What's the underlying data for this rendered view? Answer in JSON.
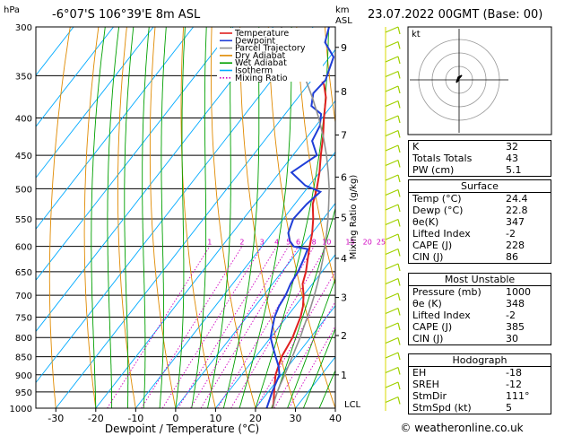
{
  "header": {
    "hpa": "hPa",
    "location": "-6°07'S 106°39'E 8m ASL",
    "km": "km",
    "asl": "ASL",
    "datetime": "23.07.2022 00GMT (Base: 00)"
  },
  "legend": [
    {
      "name": "Temperature",
      "color": "#e02020"
    },
    {
      "name": "Dewpoint",
      "color": "#1f3ed8"
    },
    {
      "name": "Parcel Trajectory",
      "color": "#909090"
    },
    {
      "name": "Dry Adiabat",
      "color": "#e08a00"
    },
    {
      "name": "Wet Adiabat",
      "color": "#00a000"
    },
    {
      "name": "Isotherm",
      "color": "#00aaff"
    },
    {
      "name": "Mixing Ratio",
      "color": "#d000c0"
    }
  ],
  "axes": {
    "xlabel": "Dewpoint / Temperature (°C)",
    "ylabel_right": "Mixing Ratio (g/kg)",
    "lcl": "LCL",
    "copyright": "© weatheronline.co.uk"
  },
  "chart_data": {
    "type": "line",
    "xlim": [
      -35,
      40
    ],
    "ylim_hpa": [
      1000,
      300
    ],
    "x_ticks": [
      "-30",
      "-20",
      "-10",
      "0",
      "10",
      "20",
      "30",
      "40"
    ],
    "pressure_ticks": [
      "1000",
      "950",
      "900",
      "850",
      "800",
      "750",
      "700",
      "650",
      "600",
      "550",
      "500",
      "450",
      "400",
      "350",
      "300"
    ],
    "km_ticks": [
      {
        "label": "1",
        "p": 900
      },
      {
        "label": "2",
        "p": 795
      },
      {
        "label": "3",
        "p": 705
      },
      {
        "label": "4",
        "p": 623
      },
      {
        "label": "5",
        "p": 548
      },
      {
        "label": "6",
        "p": 482
      },
      {
        "label": "7",
        "p": 422
      },
      {
        "label": "8",
        "p": 368
      },
      {
        "label": "9",
        "p": 320
      }
    ],
    "mixing_ratio_labels": [
      "1",
      "2",
      "3",
      "4",
      "5",
      "6",
      "8",
      "10",
      "15",
      "20",
      "25"
    ],
    "series": [
      {
        "name": "Temperature",
        "points": [
          [
            24.4,
            1000
          ],
          [
            23,
            975
          ],
          [
            21.5,
            950
          ],
          [
            20,
            925
          ],
          [
            18.5,
            900
          ],
          [
            17.5,
            875
          ],
          [
            16.5,
            850
          ],
          [
            16,
            825
          ],
          [
            15.5,
            800
          ],
          [
            14.5,
            775
          ],
          [
            13.5,
            750
          ],
          [
            12,
            725
          ],
          [
            10,
            700
          ],
          [
            7.5,
            675
          ],
          [
            6,
            650
          ],
          [
            4,
            625
          ],
          [
            2,
            600
          ],
          [
            0,
            575
          ],
          [
            -2.5,
            550
          ],
          [
            -5.5,
            525
          ],
          [
            -7.5,
            500
          ],
          [
            -10,
            475
          ],
          [
            -13,
            450
          ],
          [
            -16,
            425
          ],
          [
            -19.5,
            400
          ],
          [
            -23,
            375
          ],
          [
            -26,
            360
          ],
          [
            -27.5,
            355
          ]
        ]
      },
      {
        "name": "Dewpoint",
        "points": [
          [
            22.8,
            1000
          ],
          [
            21,
            950
          ],
          [
            19.5,
            900
          ],
          [
            17.5,
            875
          ],
          [
            15,
            850
          ],
          [
            12.5,
            825
          ],
          [
            10,
            800
          ],
          [
            8.5,
            775
          ],
          [
            7,
            750
          ],
          [
            6,
            725
          ],
          [
            5.5,
            700
          ],
          [
            4.5,
            675
          ],
          [
            4,
            650
          ],
          [
            3,
            625
          ],
          [
            2,
            605
          ],
          [
            -2,
            600
          ],
          [
            -4,
            590
          ],
          [
            -6,
            575
          ],
          [
            -7.5,
            550
          ],
          [
            -7,
            525
          ],
          [
            -6,
            505
          ],
          [
            -11,
            495
          ],
          [
            -17,
            475
          ],
          [
            -14,
            450
          ],
          [
            -18,
            430
          ],
          [
            -19,
            410
          ],
          [
            -21,
            395
          ],
          [
            -25,
            385
          ],
          [
            -27,
            370
          ],
          [
            -26.5,
            355
          ],
          [
            -29,
            330
          ],
          [
            -34,
            315
          ],
          [
            -36,
            300
          ]
        ]
      },
      {
        "name": "Parcel Trajectory",
        "points": [
          [
            24.4,
            1000
          ],
          [
            23.2,
            975
          ],
          [
            22.3,
            950
          ],
          [
            21.5,
            925
          ],
          [
            20.8,
            900
          ],
          [
            20,
            875
          ],
          [
            19.2,
            850
          ],
          [
            18.3,
            825
          ],
          [
            17.4,
            800
          ],
          [
            16.3,
            775
          ],
          [
            15.2,
            750
          ],
          [
            14,
            725
          ],
          [
            12.7,
            700
          ],
          [
            11.2,
            675
          ],
          [
            9.6,
            650
          ],
          [
            7.8,
            625
          ],
          [
            5.8,
            600
          ],
          [
            3.6,
            575
          ],
          [
            1.2,
            550
          ],
          [
            -1.5,
            525
          ],
          [
            -4.4,
            500
          ],
          [
            -7.8,
            475
          ],
          [
            -11.6,
            450
          ],
          [
            -15.9,
            425
          ],
          [
            -20.8,
            400
          ],
          [
            -26.4,
            375
          ],
          [
            -32.7,
            350
          ],
          [
            -40,
            325
          ],
          [
            -48,
            300
          ]
        ]
      }
    ]
  },
  "hodograph": {
    "label": "kt"
  },
  "indices": [
    {
      "label": "K",
      "value": "32"
    },
    {
      "label": "Totals Totals",
      "value": "43"
    },
    {
      "label": "PW (cm)",
      "value": "5.1"
    }
  ],
  "surface": {
    "title": "Surface",
    "rows": [
      {
        "label": "Temp (°C)",
        "value": "24.4"
      },
      {
        "label": "Dewp (°C)",
        "value": "22.8"
      },
      {
        "label": "θe(K)",
        "value": "347"
      },
      {
        "label": "Lifted Index",
        "value": "-2"
      },
      {
        "label": "CAPE (J)",
        "value": "228"
      },
      {
        "label": "CIN (J)",
        "value": "86"
      }
    ]
  },
  "most_unstable": {
    "title": "Most Unstable",
    "rows": [
      {
        "label": "Pressure (mb)",
        "value": "1000"
      },
      {
        "label": "θe (K)",
        "value": "348"
      },
      {
        "label": "Lifted Index",
        "value": "-2"
      },
      {
        "label": "CAPE (J)",
        "value": "385"
      },
      {
        "label": "CIN (J)",
        "value": "30"
      }
    ]
  },
  "hodo_table": {
    "title": "Hodograph",
    "rows": [
      {
        "label": "EH",
        "value": "-18"
      },
      {
        "label": "SREH",
        "value": "-12"
      },
      {
        "label": "StmDir",
        "value": "111°"
      },
      {
        "label": "StmSpd (kt)",
        "value": "5"
      }
    ]
  }
}
